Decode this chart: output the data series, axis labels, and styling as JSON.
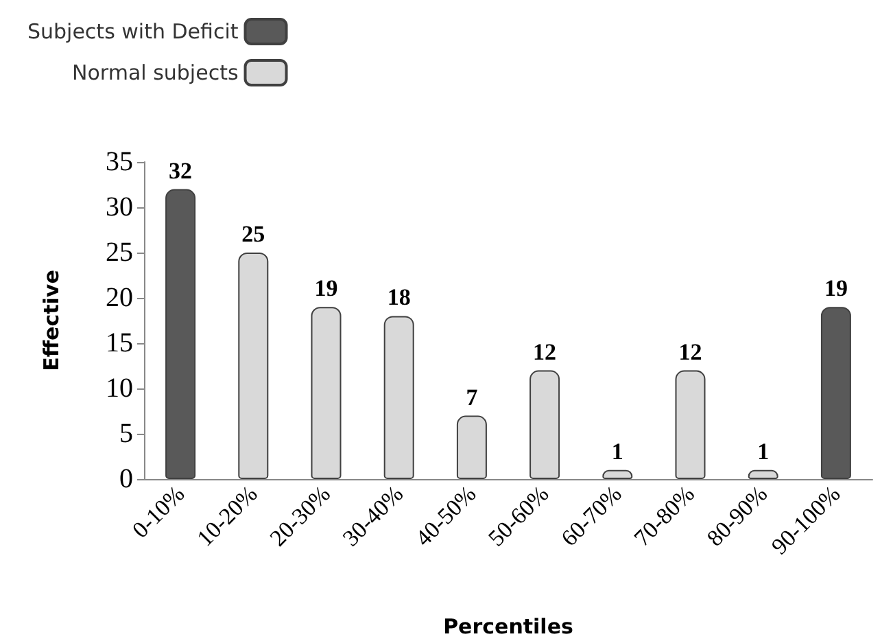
{
  "chart_data": {
    "type": "bar",
    "xlabel": "Percentiles",
    "ylabel": "Effective",
    "categories": [
      "0-10%",
      "10-20%",
      "20-30%",
      "30-40%",
      "40-50%",
      "50-60%",
      "60-70%",
      "70-80%",
      "80-90%",
      "90-100%"
    ],
    "series": [
      {
        "name": "Subjects with Deficit",
        "color": "#595959",
        "values": [
          32,
          null,
          null,
          null,
          null,
          null,
          null,
          null,
          null,
          19
        ]
      },
      {
        "name": "Normal subjects",
        "color": "#d9d9d9",
        "values": [
          null,
          25,
          19,
          18,
          7,
          12,
          1,
          12,
          1,
          null
        ]
      }
    ],
    "ylim": [
      0,
      35
    ],
    "yticks": [
      0,
      5,
      10,
      15,
      20,
      25,
      30,
      35
    ],
    "grid": false,
    "legend": "top left",
    "data_labels": true
  }
}
